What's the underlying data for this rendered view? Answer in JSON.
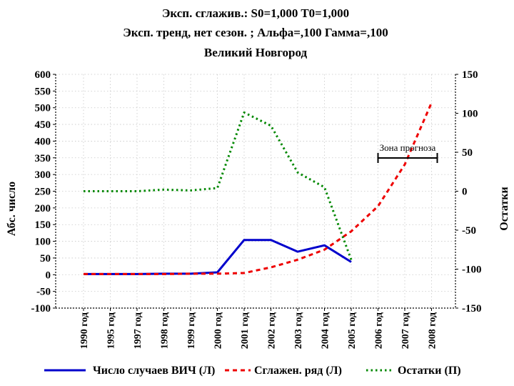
{
  "chart_data": {
    "type": "line",
    "title_lines": [
      "Эксп. сглажив.: S0=1,000 T0=1,000",
      "Эксп. тренд, нет сезон. ; Альфа=,100 Гамма=,100",
      "Великий Новгород"
    ],
    "categories": [
      "1990 год",
      "1995 год",
      "1997 год",
      "1998 год",
      "1999 год",
      "2000 год",
      "2001 год",
      "2002 год",
      "2003 год",
      "2004 год",
      "2005 год",
      "2006 год",
      "2007 год",
      "2008 год"
    ],
    "y_left": {
      "label": "Абс. число",
      "range": [
        -100,
        600
      ],
      "ticks": [
        600,
        550,
        500,
        450,
        400,
        350,
        300,
        250,
        200,
        150,
        100,
        50,
        0,
        -50,
        -100
      ]
    },
    "y_right": {
      "label": "Остатки",
      "range": [
        -150,
        150
      ],
      "ticks": [
        150,
        100,
        50,
        0,
        -50,
        -100,
        -150
      ]
    },
    "grid": true,
    "series": [
      {
        "name": "Число случаев ВИЧ (Л)",
        "axis": "left",
        "style": "solid",
        "color": "#0000cc",
        "values": [
          2,
          2,
          2,
          3,
          3,
          7,
          104,
          104,
          69,
          88,
          38,
          null,
          null,
          null
        ]
      },
      {
        "name": "Сглажен. ряд (Л)",
        "axis": "left",
        "style": "dashed",
        "color": "#ee0000",
        "values": [
          2,
          2,
          2,
          2,
          3,
          3,
          5,
          22,
          45,
          75,
          130,
          205,
          330,
          515
        ]
      },
      {
        "name": "Остатки (П)",
        "axis": "right",
        "style": "dotted",
        "color": "#008800",
        "values": [
          0,
          0,
          0,
          2,
          1,
          4,
          101,
          84,
          24,
          5,
          -88,
          null,
          null,
          null
        ]
      }
    ],
    "annotation": {
      "text": "Зона прогноза",
      "from": "2006 год",
      "to": "2008 год"
    }
  }
}
